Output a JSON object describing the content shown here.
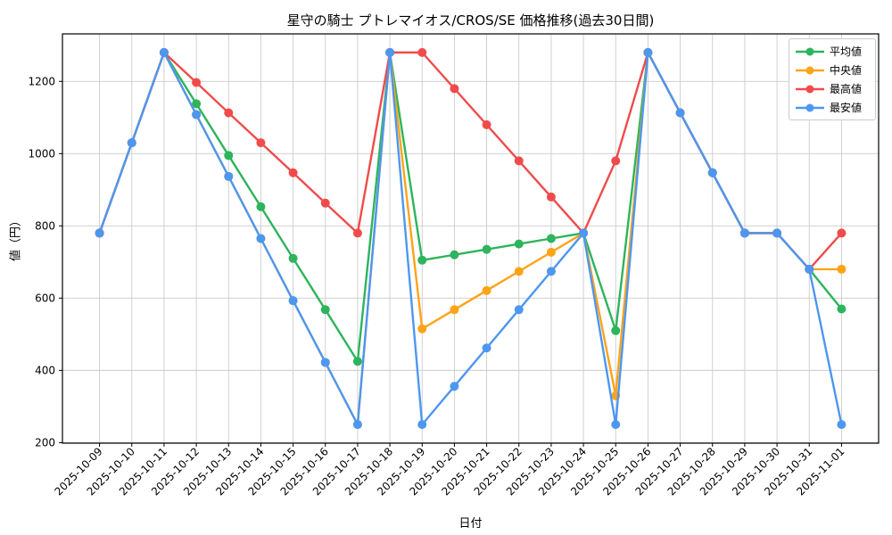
{
  "chart_data": {
    "type": "line",
    "title": "星守の騎士 プトレマイオス/CROS/SE 価格推移(過去30日間)",
    "xlabel": "日付",
    "ylabel": "値（円）",
    "grid": true,
    "legend_position": "upper right",
    "ylim": [
      198.5,
      1331.5
    ],
    "y_ticks": [
      200,
      400,
      600,
      800,
      1000,
      1200
    ],
    "x_dates": [
      "2025-10-09",
      "2025-10-10",
      "2025-10-11",
      "2025-10-12",
      "2025-10-13",
      "2025-10-14",
      "2025-10-15",
      "2025-10-16",
      "2025-10-17",
      "2025-10-18",
      "2025-10-19",
      "2025-10-20",
      "2025-10-21",
      "2025-10-22",
      "2025-10-23",
      "2025-10-24",
      "2025-10-25",
      "2025-10-26",
      "2025-10-27",
      "2025-10-28",
      "2025-10-29",
      "2025-10-30",
      "2025-10-31",
      "2025-11-01"
    ],
    "series": [
      {
        "key": "avg",
        "name": "平均値",
        "color": "#2db45c",
        "values": [
          780,
          1030,
          1280,
          1138,
          995,
          853,
          710,
          568,
          425,
          1280,
          705,
          720,
          735,
          750,
          765,
          780,
          510,
          1280,
          1113,
          947,
          780,
          780,
          680,
          570
        ]
      },
      {
        "key": "median",
        "name": "中央値",
        "color": "#ffa319",
        "values": [
          780,
          1030,
          1280,
          1108,
          937,
          765,
          593,
          422,
          250,
          1280,
          515,
          568,
          621,
          674,
          727,
          780,
          330,
          1280,
          1113,
          947,
          780,
          780,
          680,
          680
        ]
      },
      {
        "key": "max",
        "name": "最高値",
        "color": "#f04b4b",
        "values": [
          780,
          1030,
          1280,
          1197,
          1113,
          1030,
          947,
          863,
          780,
          1280,
          1280,
          1180,
          1080,
          980,
          880,
          780,
          980,
          1280,
          1113,
          947,
          780,
          780,
          680,
          780
        ]
      },
      {
        "key": "min",
        "name": "最安値",
        "color": "#4d97f0",
        "values": [
          780,
          1030,
          1280,
          1108,
          937,
          765,
          593,
          422,
          250,
          1280,
          250,
          356,
          462,
          568,
          674,
          780,
          250,
          1280,
          1113,
          947,
          780,
          780,
          680,
          250
        ]
      }
    ],
    "grid_color": "#cccccc",
    "spine_color": "#000000",
    "background_color": "#ffffff"
  }
}
